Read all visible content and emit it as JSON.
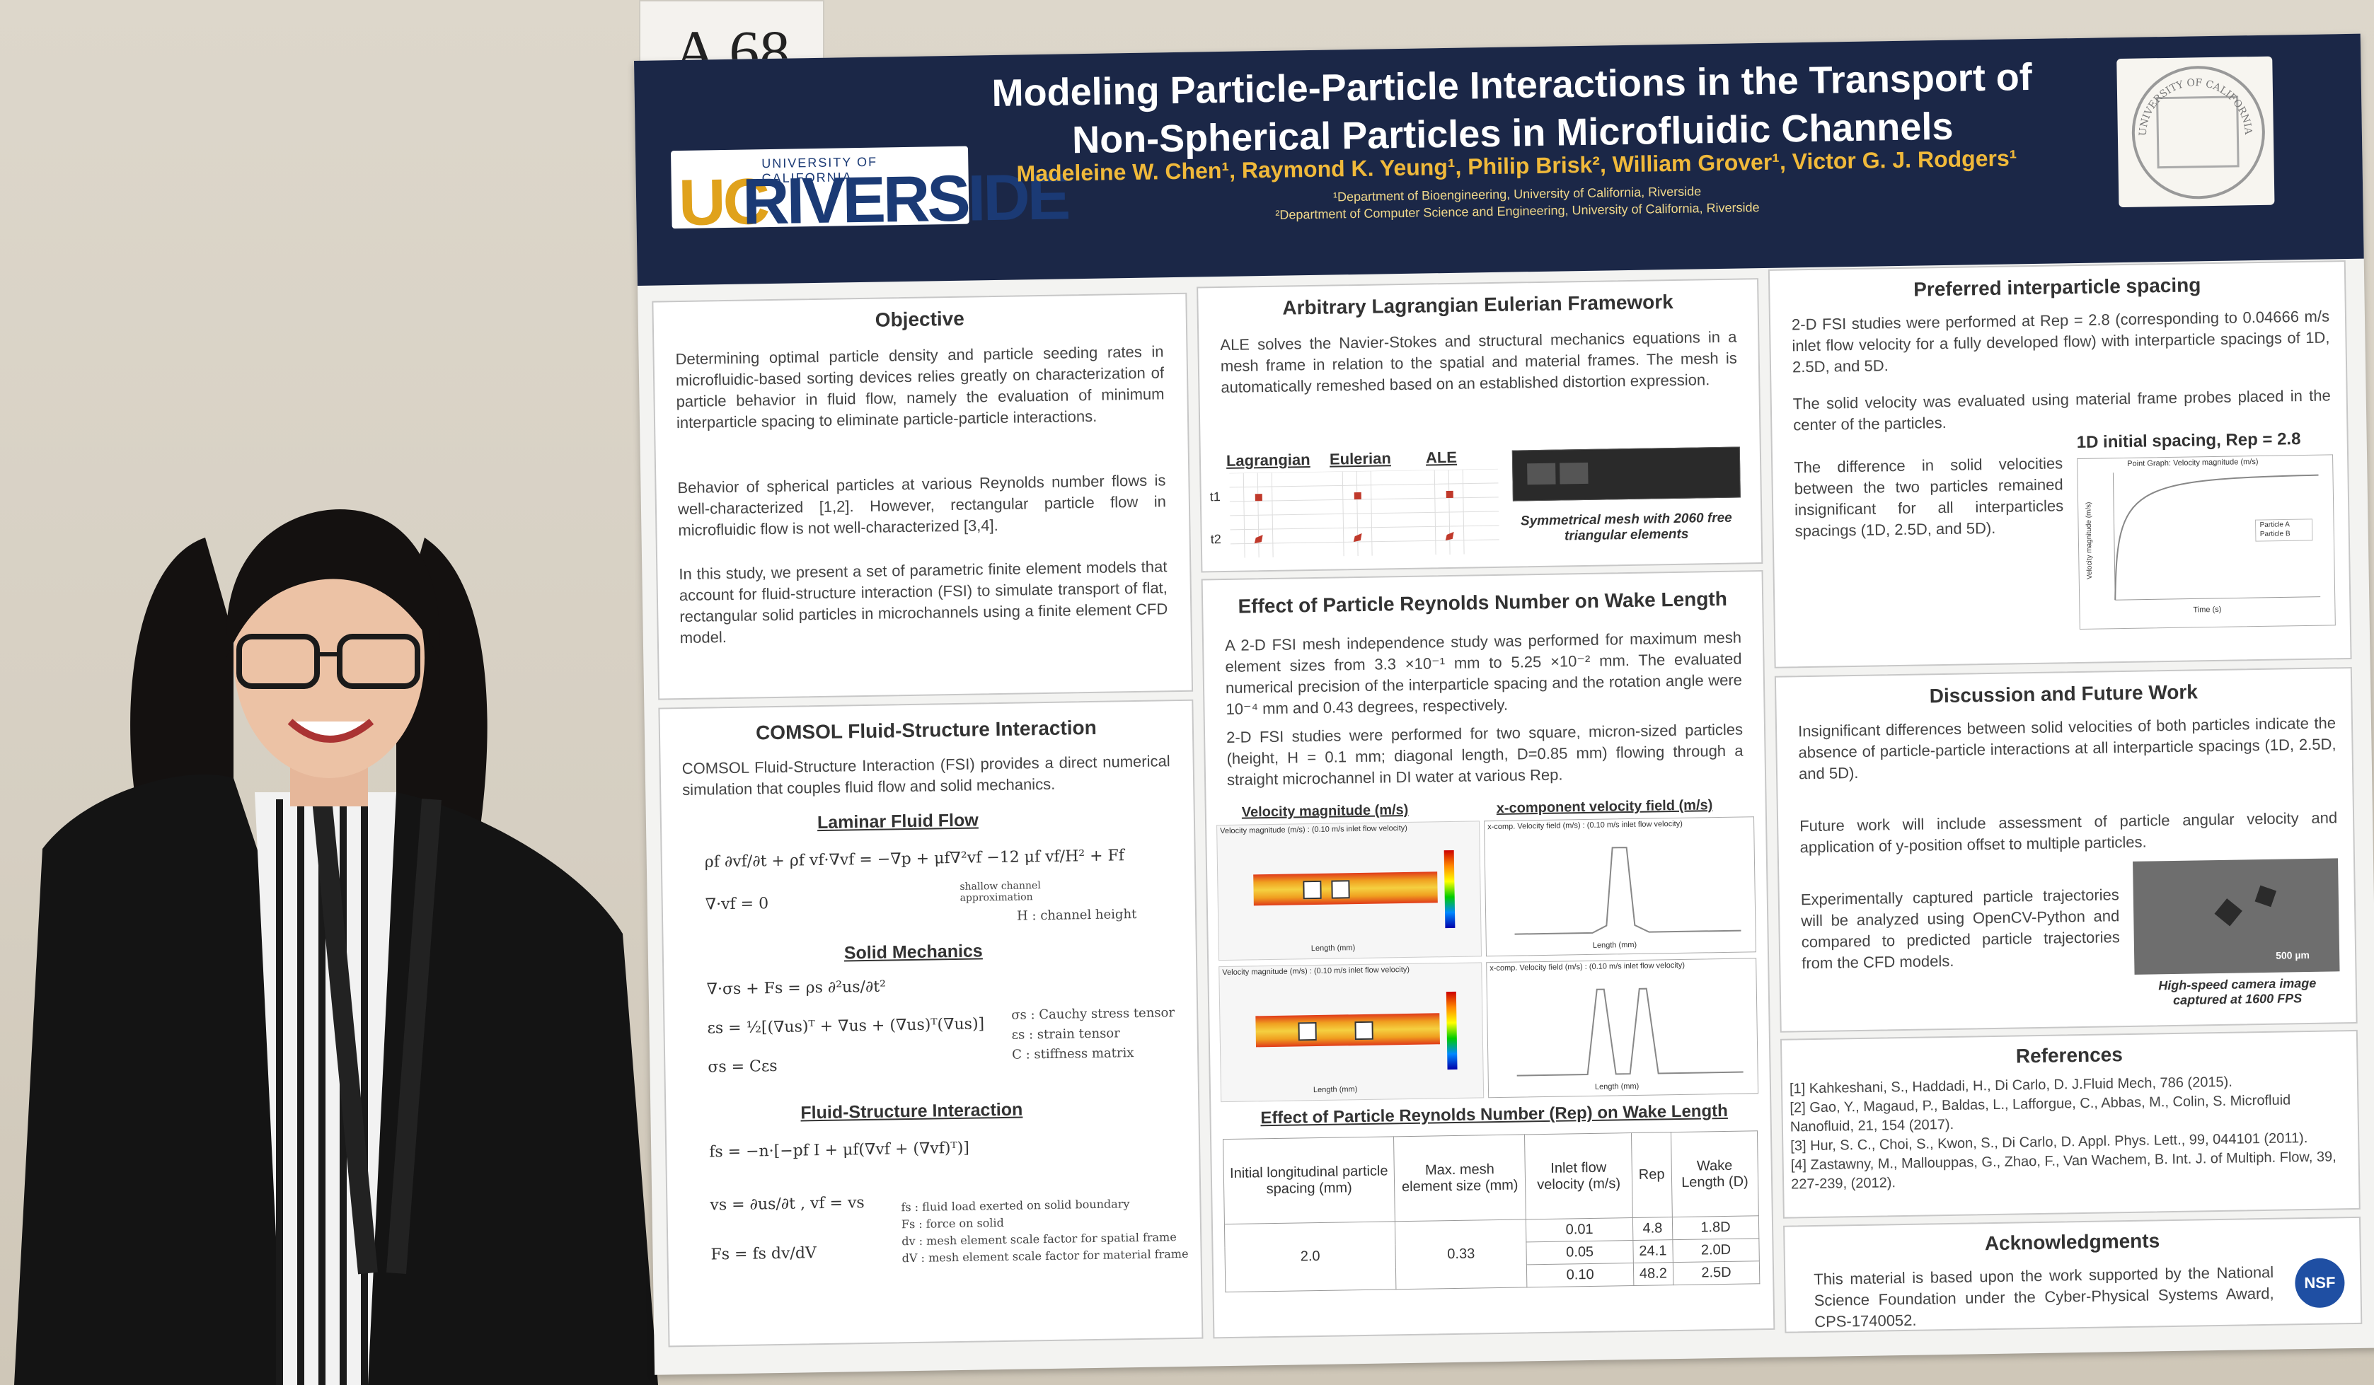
{
  "board_number": "A 68",
  "header": {
    "logo_text_1": "UC",
    "logo_text_2": "RIVERSIDE",
    "logo_subtext": "UNIVERSITY OF CALIFORNIA",
    "title": "Modeling Particle-Particle Interactions in the Transport of Non-Spherical Particles in Microfluidic Channels",
    "authors": "Madeleine W. Chen¹, Raymond K. Yeung¹, Philip Brisk², William Grover¹, Victor G. J. Rodgers¹",
    "affiliation_1": "¹Department of Bioengineering, University of California, Riverside",
    "affiliation_2": "²Department of Computer Science and Engineering, University of California, Riverside",
    "seal_text": "UNIVERSITY OF CALIFORNIA · RIVERSIDE"
  },
  "objective": {
    "title": "Objective",
    "p1": "Determining optimal particle density and particle seeding rates in microfluidic-based sorting devices relies greatly on characterization of particle behavior in fluid flow, namely the evaluation of minimum interparticle spacing to eliminate particle-particle interactions.",
    "p2": "Behavior of spherical particles at various Reynolds number flows is well-characterized [1,2]. However, rectangular particle flow in microfluidic flow is not well-characterized [3,4].",
    "p3": "In this study, we present a set of parametric finite element models that account for fluid-structure interaction (FSI) to simulate transport of flat, rectangular solid particles in microchannels using a finite element CFD model."
  },
  "comsol": {
    "title": "COMSOL Fluid-Structure Interaction",
    "intro": "COMSOL Fluid-Structure Interaction (FSI) provides a direct numerical simulation that couples fluid flow and solid mechanics.",
    "laminar_title": "Laminar Fluid Flow",
    "laminar_eq": "ρf ∂vf/∂t + ρf vf·∇vf = −∇p + μf∇²vf −12 μf vf/H² + Ff",
    "continuity_eq": "∇·vf = 0",
    "shallow_note": "shallow channel approximation",
    "h_note": "H : channel height",
    "solid_title": "Solid Mechanics",
    "solid_eq1": "∇·σs + Fs = ρs ∂²us/∂t²",
    "solid_eq2": "εs = ½[(∇us)ᵀ + ∇us + (∇us)ᵀ(∇us)]",
    "solid_eq3": "σs = Cεs",
    "solid_note1": "σs : Cauchy stress tensor",
    "solid_note2": "εs : strain tensor",
    "solid_note3": "C : stiffness matrix",
    "fsi_title": "Fluid-Structure Interaction",
    "fsi_eq1": "fs = −n·[−pf I + μf(∇vf + (∇vf)ᵀ)]",
    "fsi_eq2": "vs = ∂us/∂t ,   vf = vs",
    "fsi_eq3": "Fs = fs dv/dV",
    "fsi_note1": "fs : fluid load exerted on solid boundary",
    "fsi_note2": "Fs : force on solid",
    "fsi_note3": "dv : mesh element scale factor for spatial frame",
    "fsi_note4": "dV : mesh element scale factor for material frame"
  },
  "ale": {
    "title": "Arbitrary Lagrangian Eulerian Framework",
    "text": "ALE solves the Navier-Stokes and structural mechanics equations in a mesh frame in relation to the spatial and material frames. The mesh is automatically remeshed based on an established distortion expression.",
    "col1": "Lagrangian",
    "col2": "Eulerian",
    "col3": "ALE",
    "t1": "t1",
    "t2": "t2",
    "mesh_caption": "Symmetrical mesh with 2060 free triangular elements"
  },
  "wake": {
    "title": "Effect of Particle Reynolds Number on Wake Length",
    "p1": "A 2-D FSI mesh independence study was performed for maximum mesh element sizes from 3.3 ×10⁻¹ mm to 5.25 ×10⁻² mm. The evaluated numerical precision of the interparticle spacing and the rotation angle were 10⁻⁴ mm and 0.43 degrees, respectively.",
    "p2": "2-D FSI studies were performed for two square, micron-sized particles (height, H = 0.1 mm; diagonal length, D=0.85 mm) flowing through a straight microchannel in DI water at various Rep.",
    "vel_mag_label": "Velocity magnitude (m/s)",
    "xcomp_label": "x-component velocity field (m/s)",
    "sim_caption": "Velocity magnitude (m/s) : (0.10 m/s inlet flow velocity)",
    "xcomp_caption": "x-comp. Velocity field (m/s) : (0.10 m/s inlet flow velocity)",
    "length_axis": "Length (mm)",
    "table_title": "Effect of Particle Reynolds Number (Rep) on Wake Length",
    "table_headers": [
      "Initial longitudinal particle spacing (mm)",
      "Max. mesh element size (mm)",
      "Inlet flow velocity (m/s)",
      "Rep",
      "Wake Length (D)"
    ],
    "table_spacing": "2.0",
    "table_mesh": "0.33",
    "table_rows": [
      {
        "vel": "0.01",
        "rep": "4.8",
        "wake": "1.8D"
      },
      {
        "vel": "0.05",
        "rep": "24.1",
        "wake": "2.0D"
      },
      {
        "vel": "0.10",
        "rep": "48.2",
        "wake": "2.5D"
      }
    ]
  },
  "spacing": {
    "title": "Preferred interparticle spacing",
    "p1": "2-D FSI studies were performed at Rep = 2.8 (corresponding to 0.04666 m/s inlet flow velocity for a fully developed flow) with interparticle spacings of 1D, 2.5D, and 5D.",
    "p2": "The solid velocity was evaluated using material frame probes placed in the center of the particles.",
    "p3": "The difference in solid velocities between the two particles remained insignificant for all interparticles spacings (1D, 2.5D, and 5D).",
    "graph_title": "1D initial spacing, Rep = 2.8",
    "graph_subtitle": "Point Graph: Velocity magnitude (m/s)",
    "graph_ylabel": "Velocity magnitude (m/s)",
    "graph_xlabel": "Time (s)",
    "legend_a": "Particle A",
    "legend_b": "Particle B"
  },
  "discussion": {
    "title": "Discussion and Future Work",
    "p1": "Insignificant differences between solid velocities of both particles indicate the absence of particle-particle interactions at all interparticle spacings (1D, 2.5D, and 5D).",
    "p2": "Future work will include assessment of particle angular velocity and application of y-position offset to multiple particles.",
    "p3": "Experimentally captured particle trajectories will be analyzed using OpenCV-Python and compared to predicted particle trajectories from the CFD models.",
    "img_scale": "500 µm",
    "img_caption": "High-speed camera image captured at 1600 FPS"
  },
  "references": {
    "title": "References",
    "items": [
      "[1] Kahkeshani, S., Haddadi, H., Di Carlo, D. J.Fluid Mech, 786 (2015).",
      "[2] Gao, Y., Magaud, P., Baldas, L., Lafforgue, C., Abbas, M., Colin, S. Microfluid Nanofluid, 21, 154 (2017).",
      "[3] Hur, S. C., Choi, S., Kwon, S., Di Carlo, D. Appl. Phys. Lett., 99, 044101 (2011).",
      "[4] Zastawny, M., Mallouppas, G., Zhao, F., Van Wachem, B. Int. J. of Multiph. Flow, 39, 227-239, (2012)."
    ]
  },
  "ack": {
    "title": "Acknowledgments",
    "text": "This material is based upon the work supported by the National Science Foundation under the Cyber-Physical Systems Award, CPS-1740052.",
    "logo": "NSF"
  }
}
